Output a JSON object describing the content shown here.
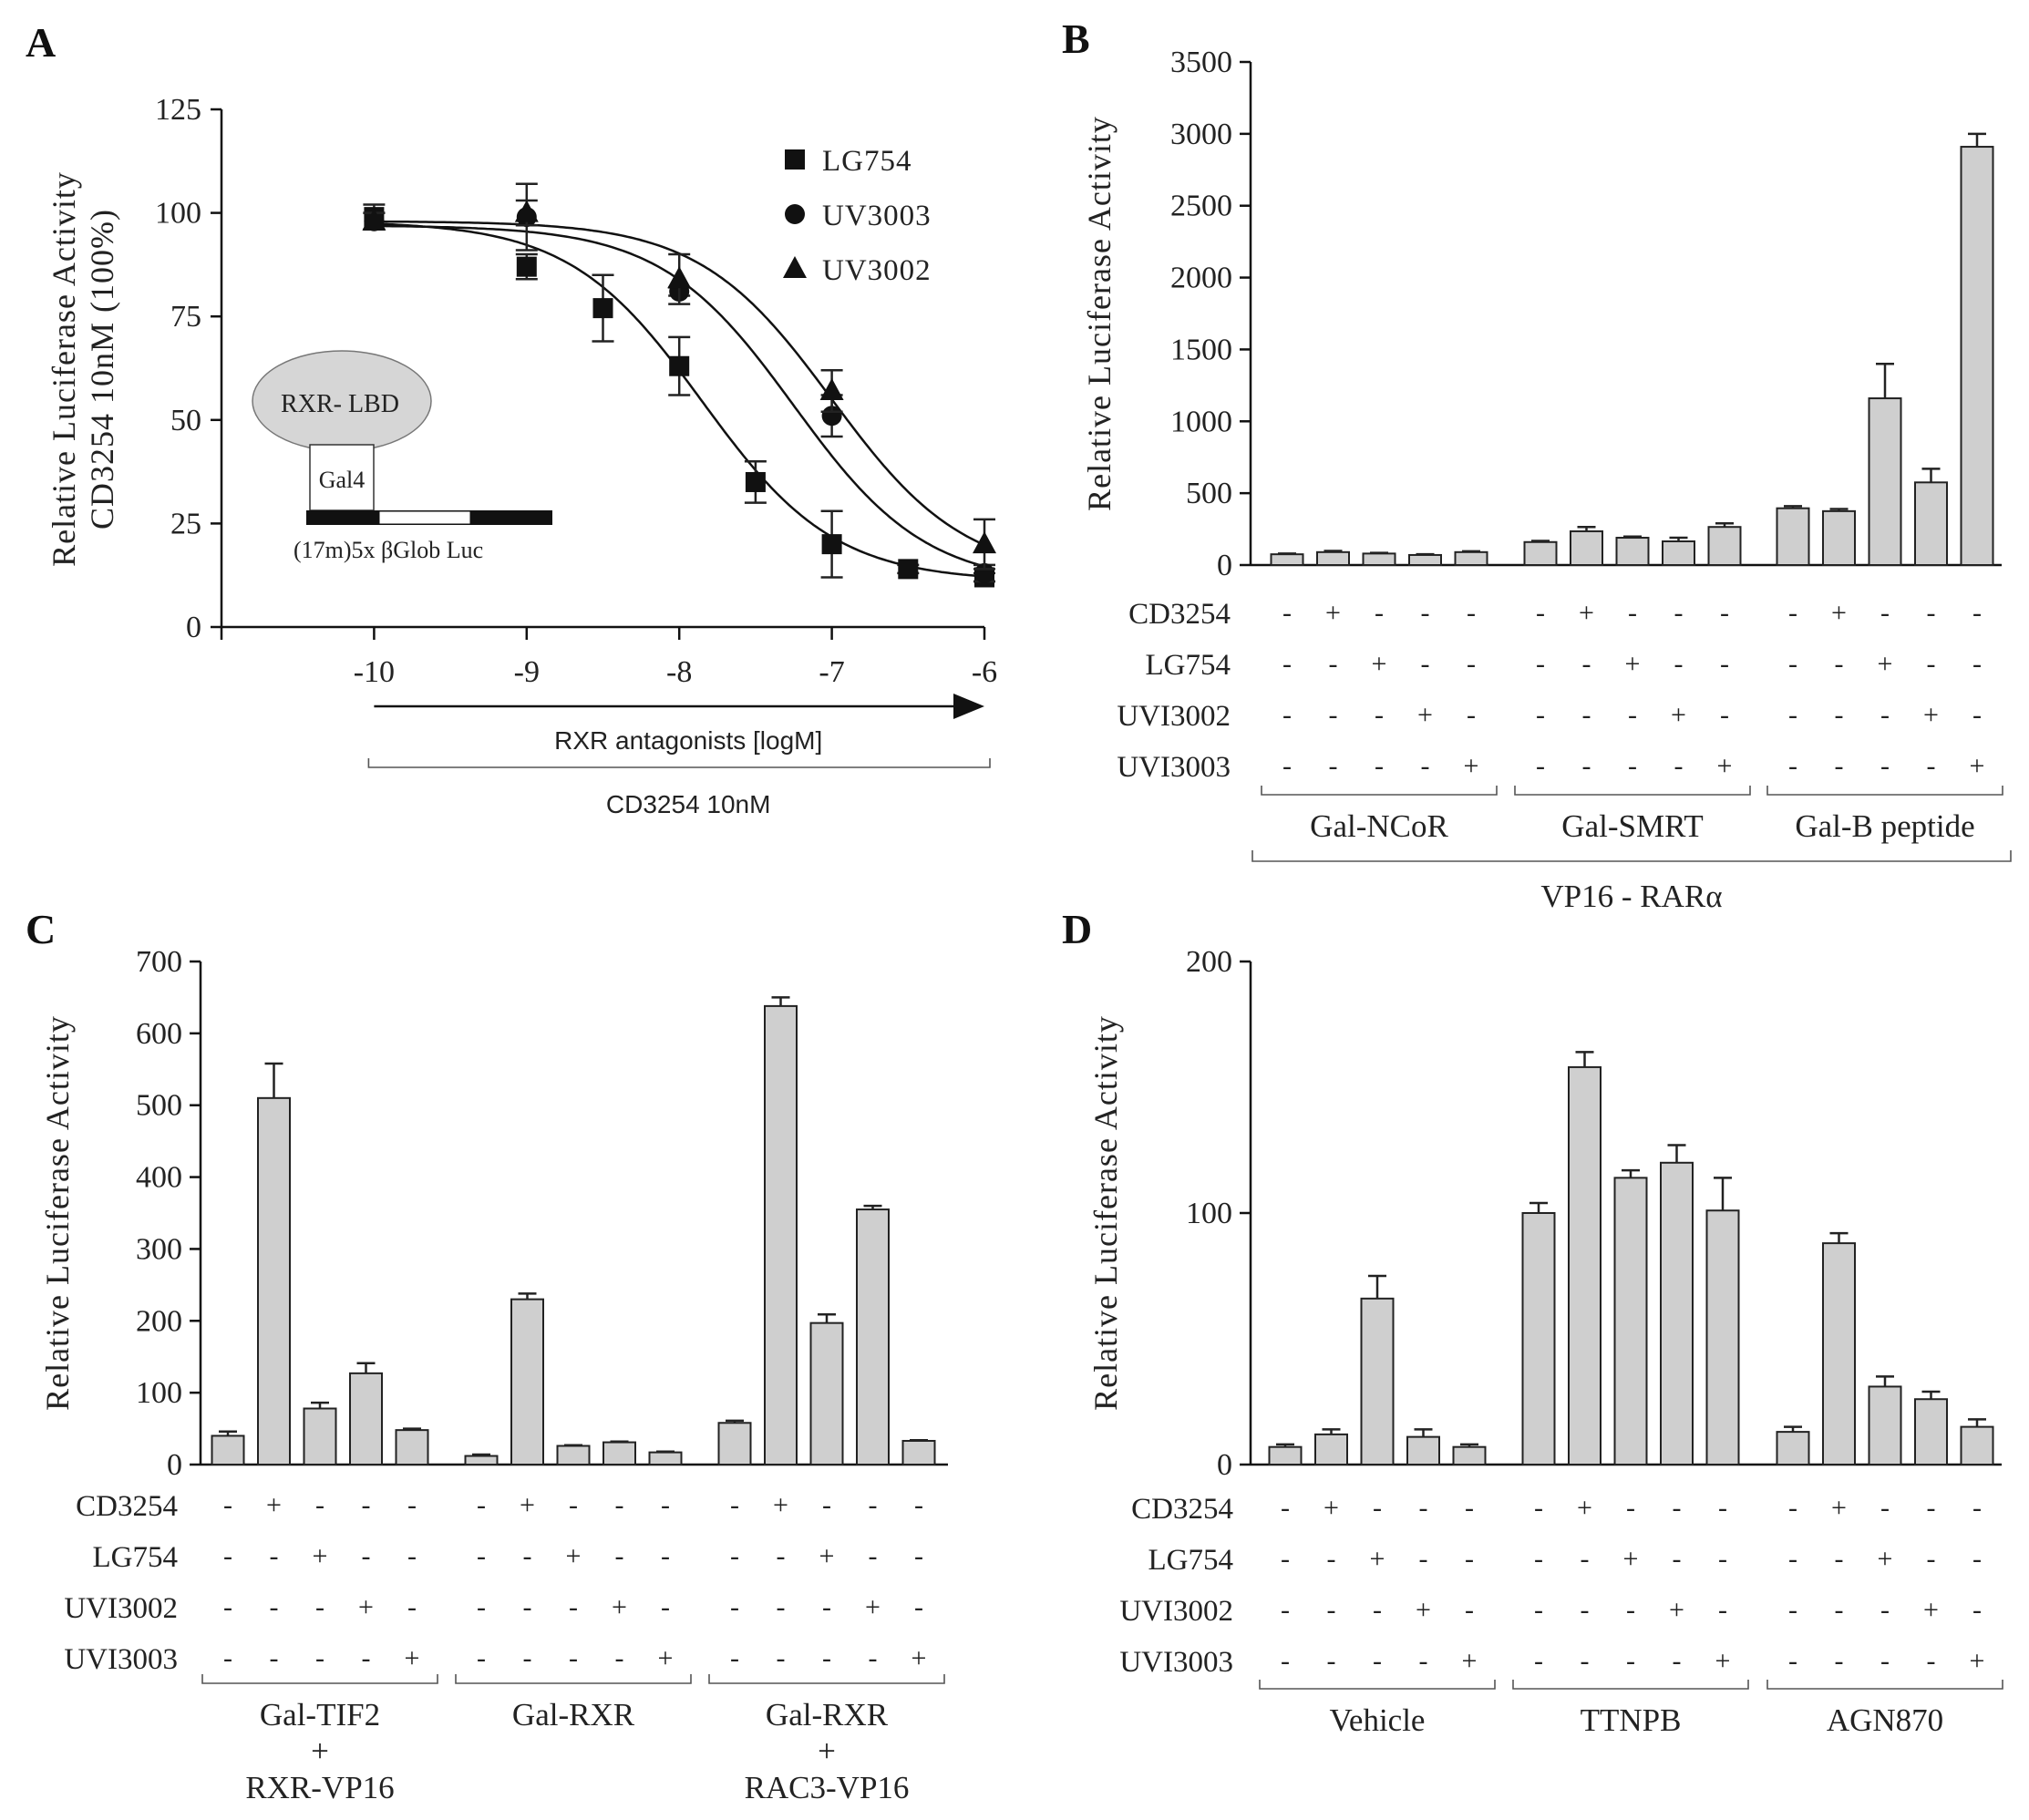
{
  "chart_data": [
    {
      "panel": "A",
      "type": "line",
      "ylabel_line1": "Relative Luciferase Activity",
      "ylabel_line2": "CD3254 10nM (100%)",
      "xlabel": "RXR antagonists  [logM]",
      "bracket_label": "CD3254 10nM",
      "x_ticks": [
        "-10",
        "-9",
        "-8",
        "-7",
        "-6"
      ],
      "y_ticks": [
        "0",
        "25",
        "50",
        "75",
        "100",
        "125"
      ],
      "xlim": [
        -11,
        -6
      ],
      "ylim": [
        0,
        125
      ],
      "series": [
        {
          "name": "LG754",
          "marker": "square",
          "points": [
            {
              "x": -10,
              "y": 99,
              "err": 3
            },
            {
              "x": -9,
              "y": 87,
              "err": 3
            },
            {
              "x": -8.5,
              "y": 77,
              "err": 8
            },
            {
              "x": -8,
              "y": 63,
              "err": 7
            },
            {
              "x": -7.5,
              "y": 35,
              "err": 5
            },
            {
              "x": -7,
              "y": 20,
              "err": 8
            },
            {
              "x": -6.5,
              "y": 14,
              "err": 1
            },
            {
              "x": -6,
              "y": 12,
              "err": 1
            }
          ],
          "fit": {
            "top": 98,
            "bottom": 11,
            "logIC50": -7.85,
            "hill": 1
          }
        },
        {
          "name": "UV3003",
          "marker": "circle",
          "points": [
            {
              "x": -10,
              "y": 98,
              "err": 2
            },
            {
              "x": -9,
              "y": 99,
              "err": 8
            },
            {
              "x": -8,
              "y": 81,
              "err": 1
            },
            {
              "x": -7,
              "y": 51,
              "err": 5
            },
            {
              "x": -6,
              "y": 13,
              "err": 2
            }
          ],
          "fit": {
            "top": 97,
            "bottom": 10,
            "logIC50": -7.25,
            "hill": 1
          }
        },
        {
          "name": "UV3002",
          "marker": "triangle",
          "points": [
            {
              "x": -10,
              "y": 98,
              "err": 2
            },
            {
              "x": -9,
              "y": 100,
              "err": 3
            },
            {
              "x": -8,
              "y": 84,
              "err": 6
            },
            {
              "x": -7,
              "y": 57,
              "err": 5
            },
            {
              "x": -6,
              "y": 20,
              "err": 6
            }
          ],
          "fit": {
            "top": 98,
            "bottom": 12,
            "logIC50": -7.0,
            "hill": 1
          }
        }
      ],
      "inset": {
        "oval_label": "RXR- LBD",
        "box_label": "Gal4",
        "line_label": "(17m)5x  βGlob     Luc"
      }
    },
    {
      "panel": "B",
      "type": "bar",
      "ylabel": "Relative Luciferase Activity",
      "ylim": [
        0,
        3500
      ],
      "y_ticks": [
        "0",
        "500",
        "1000",
        "1500",
        "2000",
        "2500",
        "3000",
        "3500"
      ],
      "condition_labels": [
        "CD3254",
        "LG754",
        "UVI3002",
        "UVI3003"
      ],
      "groups": [
        {
          "name": "Gal-NCoR",
          "values": [
            75,
            90,
            80,
            70,
            90
          ],
          "errors": [
            5,
            8,
            5,
            5,
            6
          ]
        },
        {
          "name": "Gal-SMRT",
          "values": [
            160,
            235,
            190,
            165,
            265
          ],
          "errors": [
            8,
            30,
            8,
            25,
            25
          ]
        },
        {
          "name": "Gal-B peptide",
          "values": [
            395,
            375,
            1160,
            575,
            2910
          ],
          "errors": [
            15,
            15,
            240,
            95,
            90
          ]
        }
      ],
      "super_label": "VP16 - RARα"
    },
    {
      "panel": "C",
      "type": "bar",
      "ylabel": "Relative Luciferase Activity",
      "ylim": [
        0,
        700
      ],
      "y_ticks": [
        "0",
        "100",
        "200",
        "300",
        "400",
        "500",
        "600",
        "700"
      ],
      "condition_labels": [
        "CD3254",
        "LG754",
        "UVI3002",
        "UVI3003"
      ],
      "groups": [
        {
          "name_lines": [
            "Gal-TIF2",
            "+",
            "RXR-VP16"
          ],
          "values": [
            40,
            510,
            78,
            127,
            48
          ],
          "errors": [
            6,
            48,
            8,
            14,
            2
          ]
        },
        {
          "name_lines": [
            "Gal-RXR"
          ],
          "values": [
            12,
            230,
            26,
            31,
            17
          ],
          "errors": [
            2,
            8,
            1,
            1,
            1
          ]
        },
        {
          "name_lines": [
            "Gal-RXR",
            "+",
            "RAC3-VP16"
          ],
          "values": [
            58,
            638,
            197,
            355,
            33
          ],
          "errors": [
            3,
            12,
            12,
            5,
            1
          ]
        }
      ]
    },
    {
      "panel": "D",
      "type": "bar",
      "ylabel": "Relative Luciferase Activity",
      "ylim": [
        0,
        200
      ],
      "y_ticks": [
        "0",
        "100",
        "200"
      ],
      "condition_labels": [
        "CD3254",
        "LG754",
        "UVI3002",
        "UVI3003"
      ],
      "groups": [
        {
          "name": "Vehicle",
          "values": [
            7,
            12,
            66,
            11,
            7
          ],
          "errors": [
            1,
            2,
            9,
            3,
            1
          ]
        },
        {
          "name": "TTNPB",
          "values": [
            100,
            158,
            114,
            120,
            101
          ],
          "errors": [
            4,
            6,
            3,
            7,
            13
          ]
        },
        {
          "name": "AGN870",
          "values": [
            13,
            88,
            31,
            26,
            15
          ],
          "errors": [
            2,
            4,
            4,
            3,
            3
          ]
        }
      ]
    }
  ],
  "panel_letters": [
    "A",
    "B",
    "C",
    "D"
  ],
  "sign_pattern": [
    [
      "-",
      "+",
      "-",
      "-",
      "-"
    ],
    [
      "-",
      "-",
      "+",
      "-",
      "-"
    ],
    [
      "-",
      "-",
      "-",
      "+",
      "-"
    ],
    [
      "-",
      "-",
      "-",
      "-",
      "+"
    ]
  ]
}
